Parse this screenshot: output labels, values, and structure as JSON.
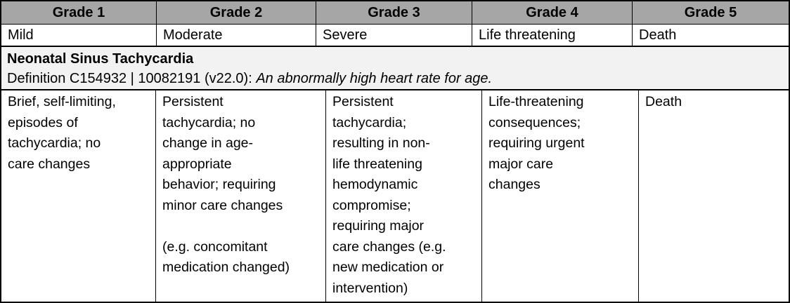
{
  "grades": [
    {
      "grade": "Grade 1",
      "severity": "Mild",
      "description": "Brief, self-limiting,\nepisodes of\ntachycardia; no\ncare changes"
    },
    {
      "grade": "Grade 2",
      "severity": "Moderate",
      "description": "Persistent\ntachycardia; no\nchange in age-\nappropriate\nbehavior; requiring\nminor care changes\n\n(e.g. concomitant\nmedication changed)"
    },
    {
      "grade": "Grade 3",
      "severity": "Severe",
      "description": "Persistent\ntachycardia;\nresulting in non-\nlife threatening\nhemodynamic\ncompromise;\nrequiring major\ncare changes (e.g.\nnew medication or\nintervention)"
    },
    {
      "grade": "Grade 4",
      "severity": "Life threatening",
      "description": "Life-threatening\nconsequences;\nrequiring urgent\nmajor care\nchanges"
    },
    {
      "grade": "Grade 5",
      "severity": "Death",
      "description": "Death"
    }
  ],
  "term": {
    "name": "Neonatal Sinus Tachycardia",
    "definition_prefix": "Definition C154932 | 10082191 (v22.0): ",
    "definition_italic": "An abnormally high heart rate for age."
  },
  "colors": {
    "header_bg": "#a6a6a6",
    "band_bg": "#f2f2f2",
    "cell_bg": "#ffffff",
    "border": "#000000",
    "text": "#000000"
  }
}
